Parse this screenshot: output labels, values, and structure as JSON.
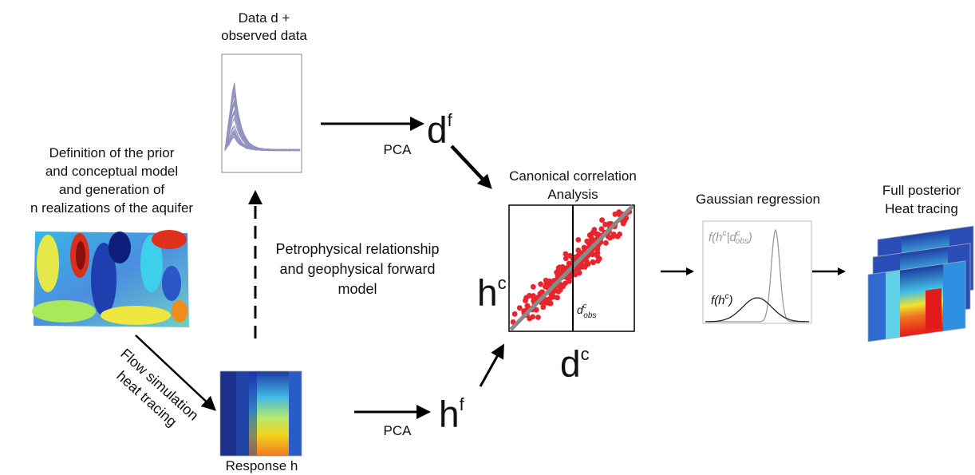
{
  "labels": {
    "prior": [
      "Definition of the prior",
      "and conceptual model",
      "and generation of",
      "n realizations of the aquifer"
    ],
    "data_title": [
      "Data d +",
      "observed data"
    ],
    "petro": [
      "Petrophysical relationship",
      "and geophysical forward",
      "model"
    ],
    "flow": [
      "Flow simulation",
      "heat tracing"
    ],
    "response": "Response h",
    "pca_top": "PCA",
    "pca_bottom": "PCA",
    "cca": [
      "Canonical correlation",
      "Analysis"
    ],
    "gauss": "Gaussian regression",
    "posterior": [
      "Full posterior",
      "Heat tracing"
    ]
  },
  "symbols": {
    "df_base": "d",
    "df_sup": "f",
    "hf_base": "h",
    "hf_sup": "f",
    "hc_base": "h",
    "hc_sup": "c",
    "dc_base": "d",
    "dc_sup": "c",
    "dobs": "d",
    "dobs_sup": "c",
    "dobs_sub": "obs",
    "posterior_fn": "f(h",
    "posterior_fn_sup": "c",
    "posterior_fn_mid": "|d",
    "posterior_fn_sup2": "c",
    "posterior_fn_sub": "obs",
    "posterior_fn_end": ")",
    "prior_fn": "f(h",
    "prior_fn_sup": "c",
    "prior_fn_end": ")"
  },
  "colors": {
    "scatter": "#e8242c",
    "regression_line": "#8a8a8a",
    "arrows": "#000000",
    "curves": "#3a3a8c"
  }
}
